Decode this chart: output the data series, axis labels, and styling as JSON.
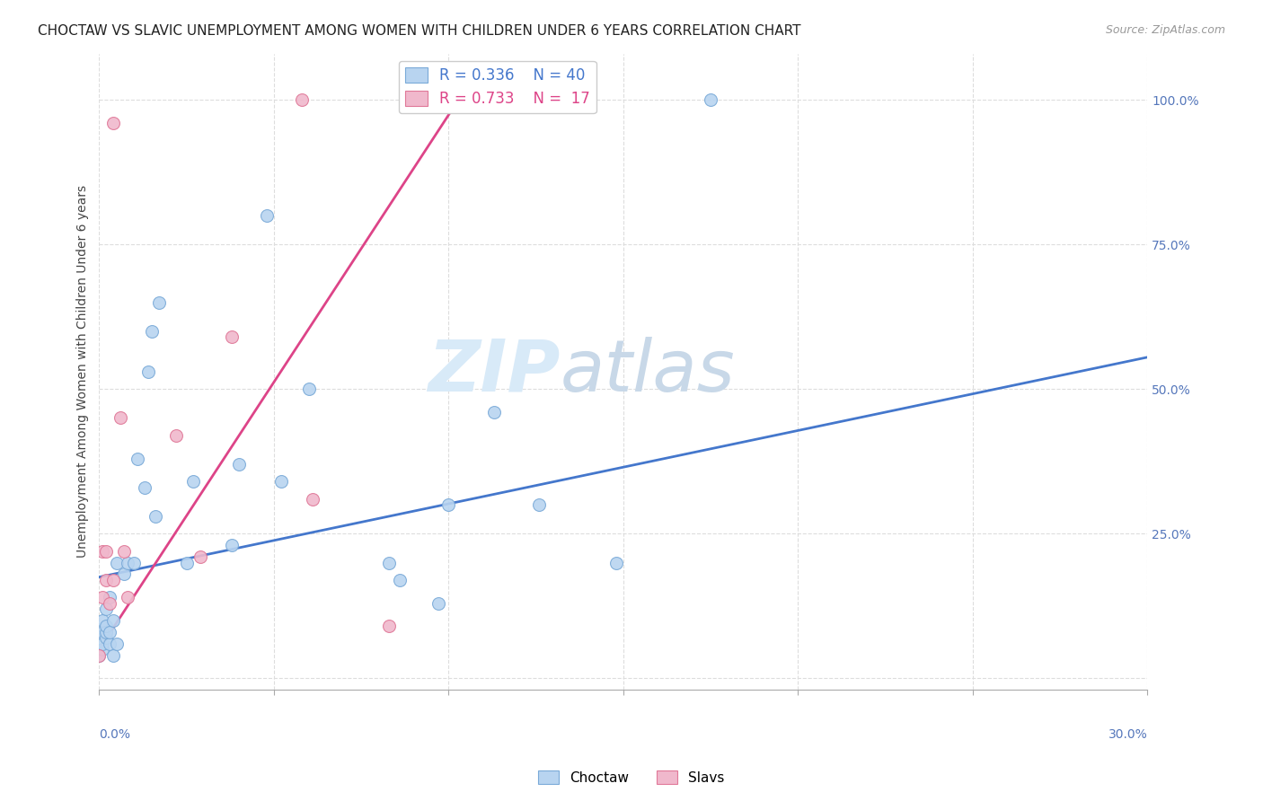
{
  "title": "CHOCTAW VS SLAVIC UNEMPLOYMENT AMONG WOMEN WITH CHILDREN UNDER 6 YEARS CORRELATION CHART",
  "source": "Source: ZipAtlas.com",
  "ylabel": "Unemployment Among Women with Children Under 6 years",
  "legend_blue_R": 0.336,
  "legend_blue_N": 40,
  "legend_pink_R": 0.733,
  "legend_pink_N": 17,
  "choctaw_color": "#b8d4f0",
  "slavic_color": "#f0b8cc",
  "choctaw_edge_color": "#7aaad8",
  "slavic_edge_color": "#e07898",
  "choctaw_line_color": "#4477cc",
  "slavic_line_color": "#dd4488",
  "watermark_zip": "ZIP",
  "watermark_atlas": "atlas",
  "choctaw_x": [
    0.0,
    0.001,
    0.001,
    0.001,
    0.001,
    0.002,
    0.002,
    0.002,
    0.002,
    0.003,
    0.003,
    0.003,
    0.004,
    0.004,
    0.005,
    0.005,
    0.007,
    0.008,
    0.01,
    0.011,
    0.013,
    0.014,
    0.015,
    0.016,
    0.017,
    0.025,
    0.027,
    0.038,
    0.04,
    0.048,
    0.052,
    0.06,
    0.083,
    0.086,
    0.097,
    0.1,
    0.113,
    0.126,
    0.148,
    0.175
  ],
  "choctaw_y": [
    0.04,
    0.05,
    0.06,
    0.08,
    0.1,
    0.07,
    0.08,
    0.09,
    0.12,
    0.06,
    0.08,
    0.14,
    0.04,
    0.1,
    0.2,
    0.06,
    0.18,
    0.2,
    0.2,
    0.38,
    0.33,
    0.53,
    0.6,
    0.28,
    0.65,
    0.2,
    0.34,
    0.23,
    0.37,
    0.8,
    0.34,
    0.5,
    0.2,
    0.17,
    0.13,
    0.3,
    0.46,
    0.3,
    0.2,
    1.0
  ],
  "slavic_x": [
    0.0,
    0.001,
    0.001,
    0.002,
    0.002,
    0.003,
    0.004,
    0.004,
    0.006,
    0.007,
    0.008,
    0.022,
    0.029,
    0.038,
    0.058,
    0.061,
    0.083
  ],
  "slavic_y": [
    0.04,
    0.22,
    0.14,
    0.17,
    0.22,
    0.13,
    0.17,
    0.96,
    0.45,
    0.22,
    0.14,
    0.42,
    0.21,
    0.59,
    1.0,
    0.31,
    0.09
  ],
  "blue_line_x": [
    0.0,
    0.3
  ],
  "blue_line_y": [
    0.175,
    0.555
  ],
  "pink_line_x": [
    0.0,
    0.105
  ],
  "pink_line_y": [
    0.05,
    1.02
  ],
  "background_color": "#ffffff",
  "grid_color": "#dddddd",
  "title_fontsize": 11,
  "source_fontsize": 9,
  "axis_tick_color": "#5577bb",
  "watermark_color": "#d8eaf8",
  "watermark_atlas_color": "#c8d8e8",
  "marker_size": 100,
  "xlim": [
    0.0,
    0.3
  ],
  "ylim": [
    -0.02,
    1.08
  ],
  "yticks": [
    0.0,
    0.25,
    0.5,
    0.75,
    1.0
  ],
  "xtick_positions": [
    0.0,
    0.05,
    0.1,
    0.15,
    0.2,
    0.25,
    0.3
  ]
}
